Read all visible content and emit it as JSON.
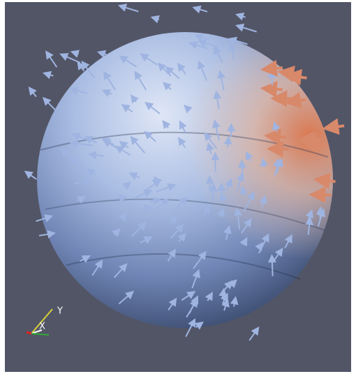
{
  "axes_widget": {
    "x_label": "X",
    "y_label": "Y"
  }
}
